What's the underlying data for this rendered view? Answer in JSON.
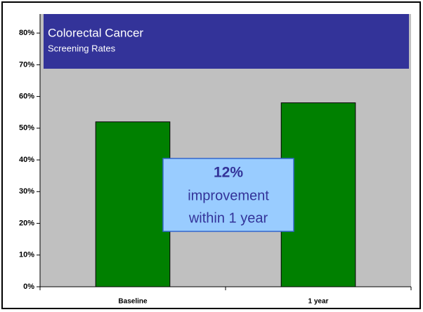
{
  "chart_data": {
    "type": "bar",
    "title": "Colorectal Cancer",
    "subtitle": "Screening Rates",
    "annotation": [
      "12%",
      "improvement",
      "within 1 year"
    ],
    "categories": [
      "Baseline",
      "1 year"
    ],
    "values": [
      52,
      58
    ],
    "color": "#008000",
    "ylim": [
      0,
      86
    ],
    "yticks": [
      {
        "value": 0,
        "label": "0%"
      },
      {
        "value": 10,
        "label": "10%"
      },
      {
        "value": 20,
        "label": "20%"
      },
      {
        "value": 30,
        "label": "30%"
      },
      {
        "value": 40,
        "label": "40%"
      },
      {
        "value": 50,
        "label": "50%"
      },
      {
        "value": 60,
        "label": "60%"
      },
      {
        "value": 70,
        "label": "70%"
      },
      {
        "value": 80,
        "label": "80%"
      }
    ],
    "grid": false
  }
}
